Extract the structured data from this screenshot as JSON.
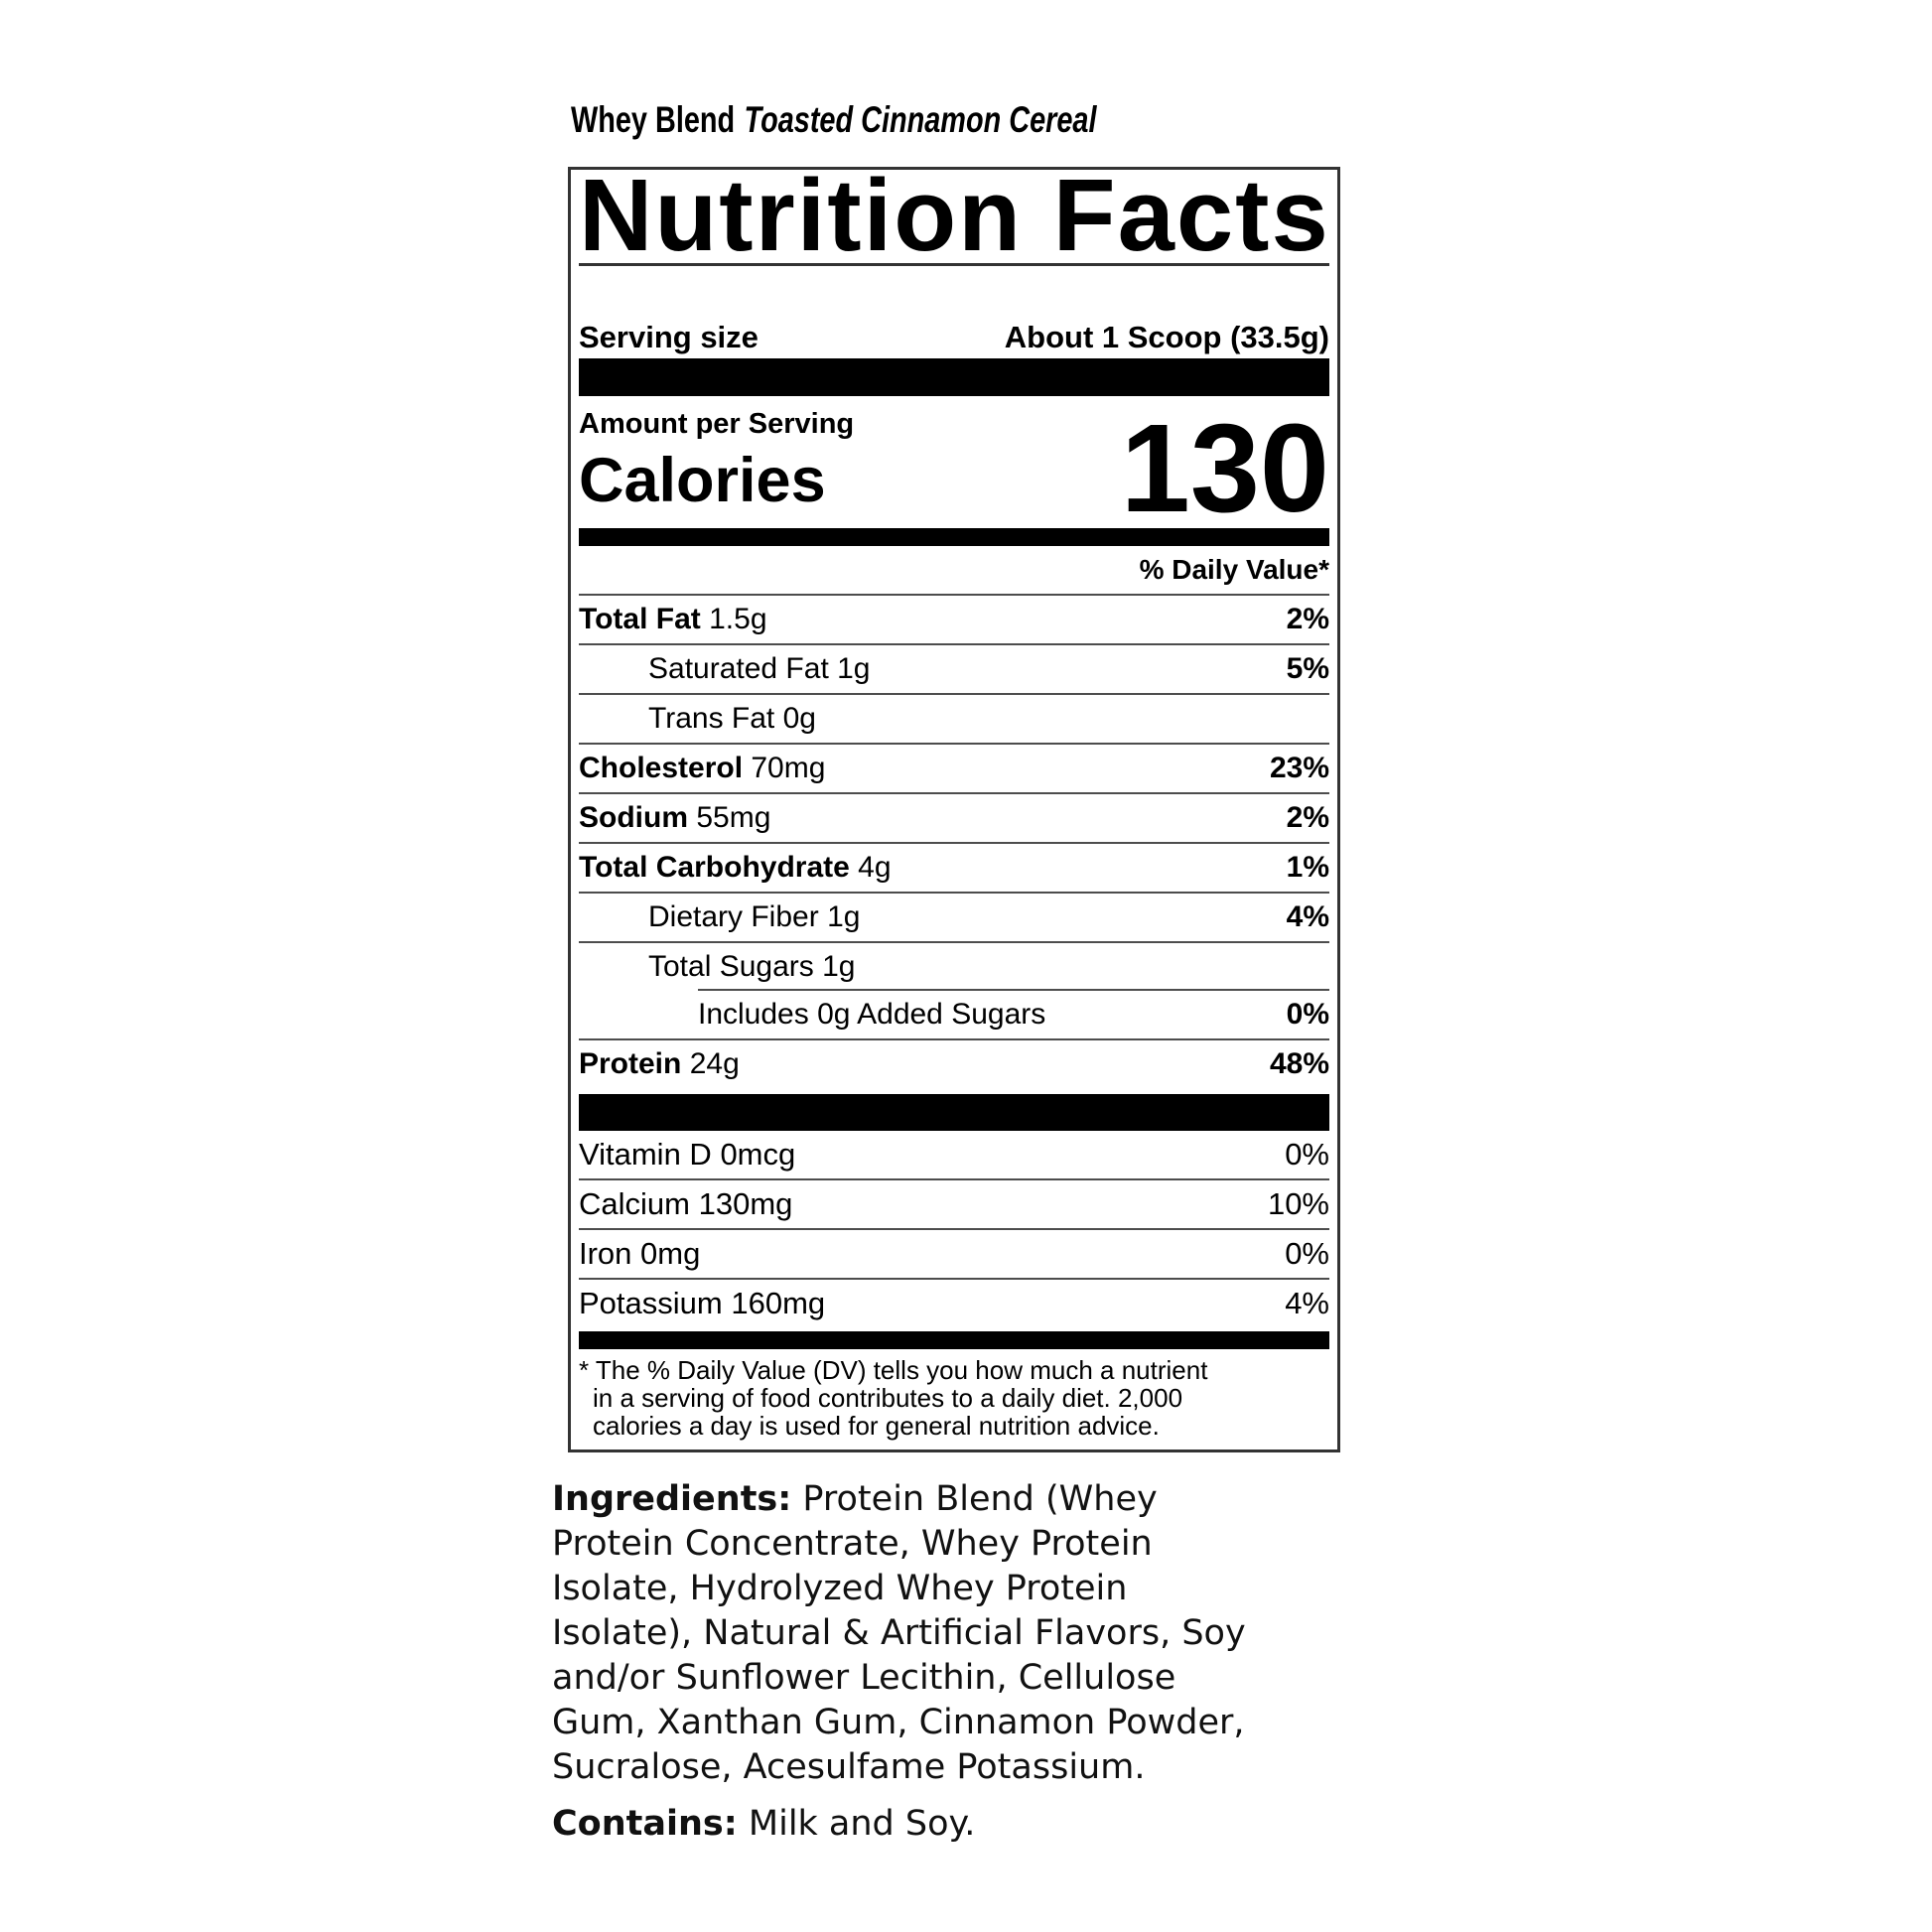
{
  "header": {
    "product_name": "Whey Blend",
    "flavor": "Toasted Cinnamon Cereal"
  },
  "panel": {
    "title": "Nutrition Facts",
    "serving_size_label": "Serving size",
    "serving_size_value": "About 1 Scoop (33.5g)",
    "amount_per_serving": "Amount per Serving",
    "calories_label": "Calories",
    "calories_value": "130",
    "daily_value_header": "% Daily Value*",
    "nutrients": [
      {
        "name": "Total Fat",
        "amount": "1.5g",
        "dv": "2%"
      },
      {
        "name": "Saturated Fat",
        "amount": "1g",
        "dv": "5%"
      },
      {
        "name": "Trans Fat",
        "amount": "0g",
        "dv": ""
      },
      {
        "name": "Cholesterol",
        "amount": "70mg",
        "dv": "23%"
      },
      {
        "name": "Sodium",
        "amount": "55mg",
        "dv": "2%"
      },
      {
        "name": "Total Carbohydrate",
        "amount": "4g",
        "dv": "1%"
      },
      {
        "name": "Dietary Fiber",
        "amount": "1g",
        "dv": "4%"
      },
      {
        "name": "Total Sugars",
        "amount": "1g",
        "dv": ""
      },
      {
        "name": "Includes 0g Added Sugars",
        "amount": "",
        "dv": "0%"
      },
      {
        "name": "Protein",
        "amount": "24g",
        "dv": "48%"
      }
    ],
    "micronutrients": [
      {
        "name": "Vitamin D",
        "amount": "0mcg",
        "dv": "0%"
      },
      {
        "name": "Calcium",
        "amount": "130mg",
        "dv": "10%"
      },
      {
        "name": "Iron",
        "amount": "0mg",
        "dv": "0%"
      },
      {
        "name": "Potassium",
        "amount": "160mg",
        "dv": "4%"
      }
    ],
    "footnote_lines": [
      "* The % Daily Value (DV) tells you how much a nutrient",
      "in a serving of food contributes to a daily diet. 2,000",
      "calories a  day is used for general nutrition advice."
    ]
  },
  "ingredients": {
    "label": "Ingredients:",
    "lines": [
      "Protein Blend (Whey",
      "Protein Concentrate, Whey Protein",
      "Isolate, Hydrolyzed Whey Protein",
      "Isolate), Natural & Artificial Flavors, Soy",
      "and/or Sunflower Lecithin, Cellulose",
      "Gum, Xanthan Gum, Cinnamon Powder,",
      "Sucralose, Acesulfame Potassium."
    ]
  },
  "contains": {
    "label": "Contains:",
    "text": "Milk and Soy."
  },
  "colors": {
    "ink": "#000000",
    "background": "#ffffff"
  }
}
